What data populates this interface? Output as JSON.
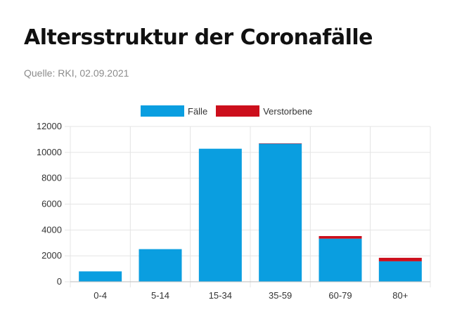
{
  "header": {
    "title": "Altersstruktur der Coronafälle",
    "source": "Quelle: RKI, 02.09.2021"
  },
  "colors": {
    "cases": "#0a9ee0",
    "deaths": "#cc0f1c",
    "grid": "#e4e4e4"
  },
  "chart_data": {
    "type": "bar",
    "stacked": true,
    "legend_position": "top-center",
    "grid": true,
    "categories": [
      "0-4",
      "5-14",
      "15-34",
      "35-59",
      "60-79",
      "80+"
    ],
    "series": [
      {
        "name": "Fälle",
        "values": [
          800,
          2520,
          10280,
          10680,
          3330,
          1580
        ]
      },
      {
        "name": "Verstorbene",
        "values": [
          0,
          0,
          0,
          10,
          200,
          270
        ]
      }
    ],
    "ylim": [
      0,
      12000
    ],
    "yticks": [
      0,
      2000,
      4000,
      6000,
      8000,
      10000,
      12000
    ]
  }
}
